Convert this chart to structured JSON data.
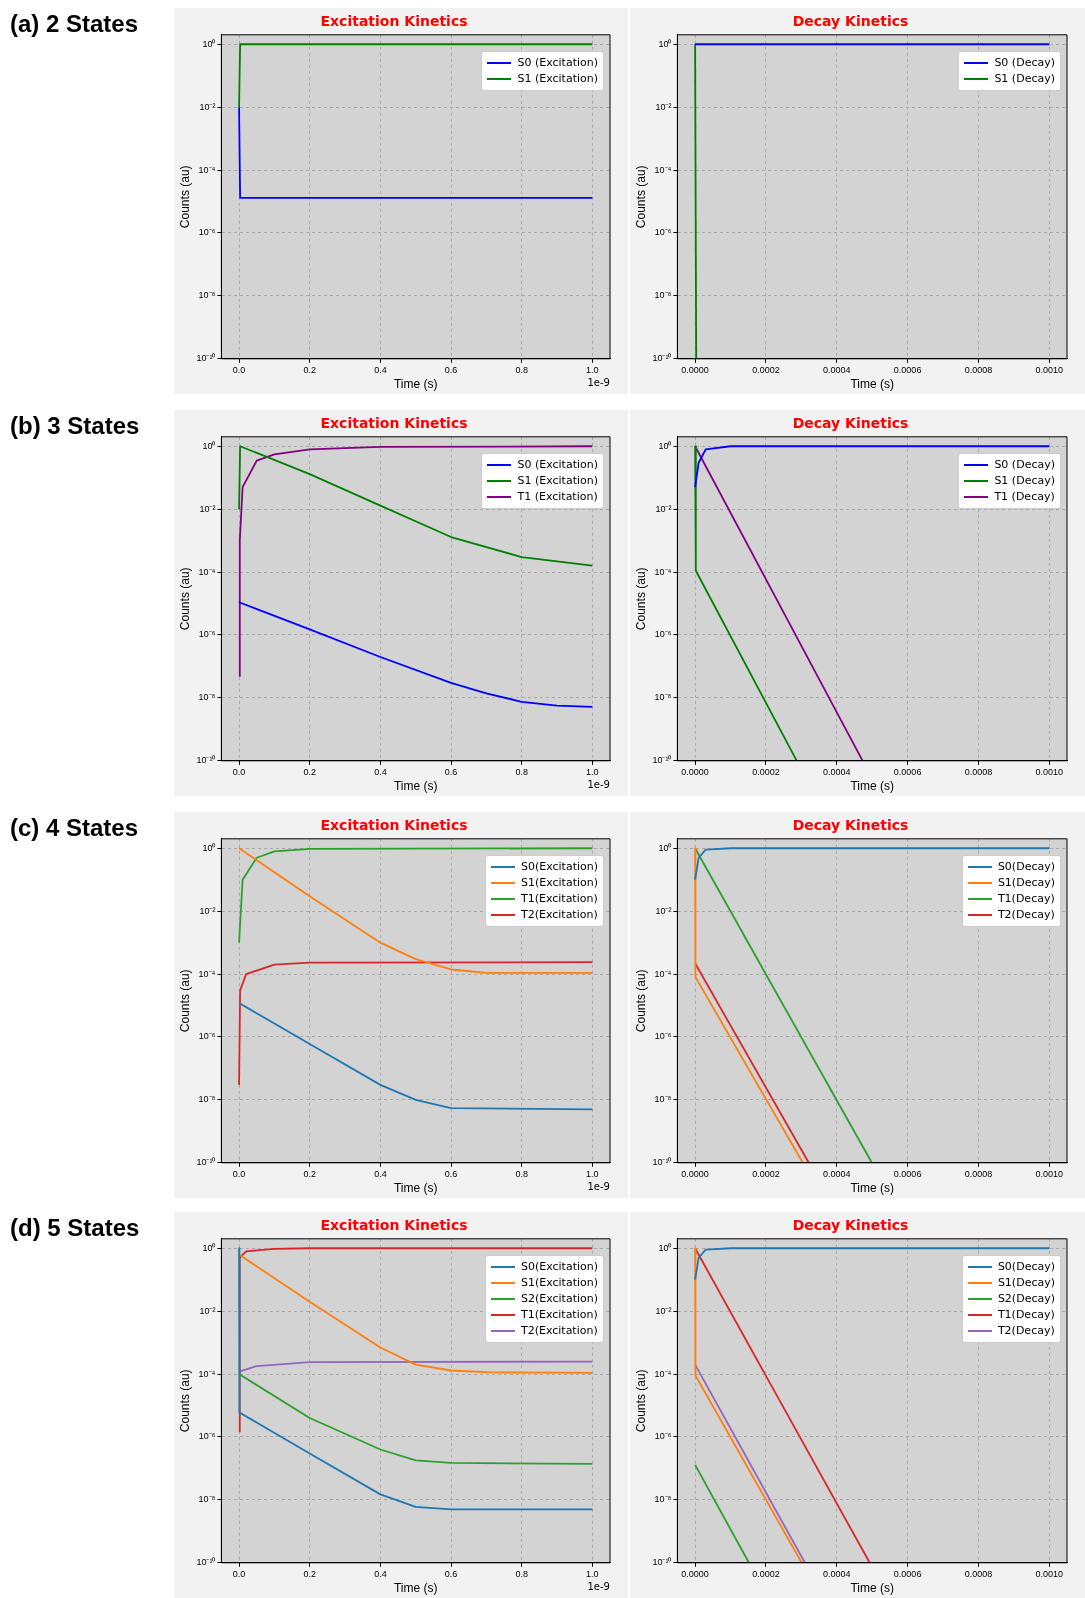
{
  "chart_data": [
    {
      "type": "line",
      "title": "Excitation Kinetics",
      "xlabel": "Time (s)",
      "ylabel": "Counts (au)",
      "log": "y",
      "grid": true,
      "legend": "top right",
      "annotations": [
        "1e-9",
        "(a) 2 States"
      ],
      "xlim": [
        -0.05,
        1.05
      ],
      "xticks": [
        {
          "value": 0,
          "label": "0.0"
        },
        0.2,
        0.4,
        0.6,
        0.8,
        {
          "value": 1,
          "label": "1.0"
        }
      ],
      "ylim": [
        1e-10,
        2
      ],
      "yticks": [
        {
          "value": 1e-10,
          "label": "10⁻¹⁰"
        },
        {
          "value": 1e-08,
          "label": "10⁻⁸"
        },
        {
          "value": 1e-06,
          "label": "10⁻⁶"
        },
        {
          "value": 0.0001,
          "label": "10⁻⁴"
        },
        {
          "value": 0.01,
          "label": "10⁻²"
        },
        {
          "value": 1,
          "label": "10⁰"
        }
      ],
      "series": [
        {
          "name": "S0 (Excitation)",
          "color": "#0000ff",
          "x": [
            0,
            0.003,
            1
          ],
          "values": [
            0.01,
            1.3e-05,
            1.3e-05
          ]
        },
        {
          "name": "S1 (Excitation)",
          "color": "#008000",
          "x": [
            0,
            0.003,
            1
          ],
          "values": [
            0.01,
            1,
            1
          ]
        }
      ]
    },
    {
      "type": "line",
      "title": "Decay Kinetics",
      "xlabel": "Time (s)",
      "ylabel": "Counts (au)",
      "log": "y",
      "grid": true,
      "legend": "top right",
      "xlim": [
        -5e-05,
        0.00105
      ],
      "xticks": [
        {
          "value": 0,
          "label": "0.0000"
        },
        {
          "value": 0.0002,
          "label": "0.0002"
        },
        {
          "value": 0.0004,
          "label": "0.0004"
        },
        {
          "value": 0.0006,
          "label": "0.0006"
        },
        {
          "value": 0.0008,
          "label": "0.0008"
        },
        {
          "value": 0.001,
          "label": "0.0010"
        }
      ],
      "ylim": [
        1e-10,
        2
      ],
      "yticks": [
        {
          "value": 1e-10,
          "label": "10⁻¹⁰"
        },
        {
          "value": 1e-08,
          "label": "10⁻⁸"
        },
        {
          "value": 1e-06,
          "label": "10⁻⁶"
        },
        {
          "value": 0.0001,
          "label": "10⁻⁴"
        },
        {
          "value": 0.01,
          "label": "10⁻²"
        },
        {
          "value": 1,
          "label": "10⁰"
        }
      ],
      "series": [
        {
          "name": "S0 (Decay)",
          "color": "#0000ff",
          "x": [
            0,
            0.001
          ],
          "values": [
            1,
            1
          ]
        },
        {
          "name": "S1 (Decay)",
          "color": "#008000",
          "x": [
            0,
            3e-06
          ],
          "values": [
            1,
            1e-10
          ]
        }
      ]
    },
    {
      "type": "line",
      "title": "Excitation Kinetics",
      "xlabel": "Time (s)",
      "ylabel": "Counts (au)",
      "log": "y",
      "grid": true,
      "legend": "top right",
      "annotations": [
        "1e-9",
        "(b) 3 States"
      ],
      "xlim": [
        -0.05,
        1.05
      ],
      "xticks": [
        {
          "value": 0,
          "label": "0.0"
        },
        0.2,
        0.4,
        0.6,
        0.8,
        {
          "value": 1,
          "label": "1.0"
        }
      ],
      "ylim": [
        1e-10,
        2
      ],
      "yticks": [
        {
          "value": 1e-10,
          "label": "10⁻¹⁰"
        },
        {
          "value": 1e-08,
          "label": "10⁻⁸"
        },
        {
          "value": 1e-06,
          "label": "10⁻⁶"
        },
        {
          "value": 0.0001,
          "label": "10⁻⁴"
        },
        {
          "value": 0.01,
          "label": "10⁻²"
        },
        {
          "value": 1,
          "label": "10⁰"
        }
      ],
      "series": [
        {
          "name": "S0 (Excitation)",
          "color": "#0000ff",
          "x": [
            0,
            0.2,
            0.4,
            0.6,
            0.7,
            0.8,
            0.9,
            1
          ],
          "values": [
            1.1e-05,
            1.5e-06,
            2e-07,
            3e-08,
            1.4e-08,
            7.5e-09,
            5.7e-09,
            5.2e-09
          ]
        },
        {
          "name": "S1 (Excitation)",
          "color": "#008000",
          "x": [
            0,
            0.003,
            0.2,
            0.4,
            0.6,
            0.8,
            1
          ],
          "values": [
            0.01,
            1,
            0.13,
            0.013,
            0.0013,
            0.0003,
            0.00016
          ]
        },
        {
          "name": "T1 (Excitation)",
          "color": "#800080",
          "x": [
            0,
            0.002,
            0.01,
            0.05,
            0.1,
            0.2,
            0.4,
            1
          ],
          "values": [
            5e-08,
            0.001,
            0.05,
            0.35,
            0.55,
            0.8,
            0.95,
            1
          ]
        }
      ]
    },
    {
      "type": "line",
      "title": "Decay Kinetics",
      "xlabel": "Time (s)",
      "ylabel": "Counts (au)",
      "log": "y",
      "grid": true,
      "legend": "top right",
      "xlim": [
        -5e-05,
        0.00105
      ],
      "xticks": [
        {
          "value": 0,
          "label": "0.0000"
        },
        {
          "value": 0.0002,
          "label": "0.0002"
        },
        {
          "value": 0.0004,
          "label": "0.0004"
        },
        {
          "value": 0.0006,
          "label": "0.0006"
        },
        {
          "value": 0.0008,
          "label": "0.0008"
        },
        {
          "value": 0.001,
          "label": "0.0010"
        }
      ],
      "ylim": [
        1e-10,
        2
      ],
      "yticks": [
        {
          "value": 1e-10,
          "label": "10⁻¹⁰"
        },
        {
          "value": 1e-08,
          "label": "10⁻⁸"
        },
        {
          "value": 1e-06,
          "label": "10⁻⁶"
        },
        {
          "value": 0.0001,
          "label": "10⁻⁴"
        },
        {
          "value": 0.01,
          "label": "10⁻²"
        },
        {
          "value": 1,
          "label": "10⁰"
        }
      ],
      "series": [
        {
          "name": "S0 (Decay)",
          "color": "#0000ff",
          "x": [
            0,
            1e-05,
            3e-05,
            0.0001,
            0.001
          ],
          "values": [
            0.05,
            0.3,
            0.8,
            1,
            1
          ]
        },
        {
          "name": "S1 (Decay)",
          "color": "#008000",
          "x": [
            0,
            2e-06,
            0.000287
          ],
          "values": [
            1,
            0.00011,
            1e-10
          ]
        },
        {
          "name": "T1 (Decay)",
          "color": "#800080",
          "x": [
            0,
            0.000473
          ],
          "values": [
            1,
            1e-10
          ]
        }
      ]
    },
    {
      "type": "line",
      "title": "Excitation Kinetics",
      "xlabel": "Time (s)",
      "ylabel": "Counts (au)",
      "log": "y",
      "grid": true,
      "legend": "top right",
      "annotations": [
        "1e-9",
        "(c) 4 States"
      ],
      "xlim": [
        -0.05,
        1.05
      ],
      "xticks": [
        {
          "value": 0,
          "label": "0.0"
        },
        0.2,
        0.4,
        0.6,
        0.8,
        {
          "value": 1,
          "label": "1.0"
        }
      ],
      "ylim": [
        1e-10,
        2
      ],
      "yticks": [
        {
          "value": 1e-10,
          "label": "10⁻¹⁰"
        },
        {
          "value": 1e-08,
          "label": "10⁻⁸"
        },
        {
          "value": 1e-06,
          "label": "10⁻⁶"
        },
        {
          "value": 0.0001,
          "label": "10⁻⁴"
        },
        {
          "value": 0.01,
          "label": "10⁻²"
        },
        {
          "value": 1,
          "label": "10⁰"
        }
      ],
      "series": [
        {
          "name": "S0(Excitation)",
          "color": "#1f77b4",
          "x": [
            0,
            0.2,
            0.4,
            0.5,
            0.6,
            1
          ],
          "values": [
            1.2e-05,
            6e-07,
            3e-08,
            1e-08,
            5.5e-09,
            5e-09
          ]
        },
        {
          "name": "S1(Excitation)",
          "color": "#ff7f0e",
          "x": [
            0,
            0.2,
            0.4,
            0.5,
            0.6,
            0.7,
            1
          ],
          "values": [
            1,
            0.03,
            0.001,
            0.0003,
            0.00014,
            0.00011,
            0.00011
          ]
        },
        {
          "name": "T1(Excitation)",
          "color": "#2ca02c",
          "x": [
            0,
            0.01,
            0.05,
            0.1,
            0.2,
            1
          ],
          "values": [
            0.001,
            0.1,
            0.5,
            0.8,
            0.95,
            1
          ]
        },
        {
          "name": "T2(Excitation)",
          "color": "#d62728",
          "x": [
            0,
            0.003,
            0.02,
            0.1,
            0.2,
            1
          ],
          "values": [
            3e-08,
            3e-05,
            0.0001,
            0.0002,
            0.00023,
            0.00024
          ]
        }
      ]
    },
    {
      "type": "line",
      "title": "Decay Kinetics",
      "xlabel": "Time (s)",
      "ylabel": "Counts (au)",
      "log": "y",
      "grid": true,
      "legend": "top right",
      "xlim": [
        -5e-05,
        0.00105
      ],
      "xticks": [
        {
          "value": 0,
          "label": "0.0000"
        },
        {
          "value": 0.0002,
          "label": "0.0002"
        },
        {
          "value": 0.0004,
          "label": "0.0004"
        },
        {
          "value": 0.0006,
          "label": "0.0006"
        },
        {
          "value": 0.0008,
          "label": "0.0008"
        },
        {
          "value": 0.001,
          "label": "0.0010"
        }
      ],
      "ylim": [
        1e-10,
        2
      ],
      "yticks": [
        {
          "value": 1e-10,
          "label": "10⁻¹⁰"
        },
        {
          "value": 1e-08,
          "label": "10⁻⁸"
        },
        {
          "value": 1e-06,
          "label": "10⁻⁶"
        },
        {
          "value": 0.0001,
          "label": "10⁻⁴"
        },
        {
          "value": 0.01,
          "label": "10⁻²"
        },
        {
          "value": 1,
          "label": "10⁰"
        }
      ],
      "series": [
        {
          "name": "S0(Decay)",
          "color": "#1f77b4",
          "x": [
            0,
            1e-05,
            3e-05,
            0.0001,
            0.001
          ],
          "values": [
            0.1,
            0.5,
            0.9,
            1,
            1
          ]
        },
        {
          "name": "S1(Decay)",
          "color": "#ff7f0e",
          "x": [
            0,
            1e-06,
            0.000304
          ],
          "values": [
            1,
            8e-05,
            1e-10
          ]
        },
        {
          "name": "T1(Decay)",
          "color": "#2ca02c",
          "x": [
            0,
            0.000499
          ],
          "values": [
            1,
            1e-10
          ]
        },
        {
          "name": "T2(Decay)",
          "color": "#d62728",
          "x": [
            0,
            0.000321
          ],
          "values": [
            0.00022,
            1e-10
          ]
        }
      ]
    },
    {
      "type": "line",
      "title": "Excitation Kinetics",
      "xlabel": "Time (s)",
      "ylabel": "Counts (au)",
      "log": "y",
      "grid": true,
      "legend": "top right",
      "annotations": [
        "1e-9",
        "(d) 5 States"
      ],
      "xlim": [
        -0.05,
        1.05
      ],
      "xticks": [
        {
          "value": 0,
          "label": "0.0"
        },
        0.2,
        0.4,
        0.6,
        0.8,
        {
          "value": 1,
          "label": "1.0"
        }
      ],
      "ylim": [
        1e-10,
        2
      ],
      "yticks": [
        {
          "value": 1e-10,
          "label": "10⁻¹⁰"
        },
        {
          "value": 1e-08,
          "label": "10⁻⁸"
        },
        {
          "value": 1e-06,
          "label": "10⁻⁶"
        },
        {
          "value": 0.0001,
          "label": "10⁻⁴"
        },
        {
          "value": 0.01,
          "label": "10⁻²"
        },
        {
          "value": 1,
          "label": "10⁰"
        }
      ],
      "series": [
        {
          "name": "S0(Excitation)",
          "color": "#1f77b4",
          "x": [
            0,
            0.001,
            0.2,
            0.4,
            0.5,
            0.6,
            1
          ],
          "values": [
            1,
            6e-06,
            3e-07,
            1.5e-08,
            6e-09,
            5e-09,
            5e-09
          ]
        },
        {
          "name": "S1(Excitation)",
          "color": "#ff7f0e",
          "x": [
            0.003,
            0.2,
            0.4,
            0.5,
            0.6,
            0.7,
            1
          ],
          "values": [
            0.6,
            0.02,
            0.0007,
            0.0002,
            0.00013,
            0.000115,
            0.00011
          ]
        },
        {
          "name": "S2(Excitation)",
          "color": "#2ca02c",
          "x": [
            0,
            0.2,
            0.4,
            0.5,
            0.6,
            1
          ],
          "values": [
            0.0001,
            4e-06,
            4e-07,
            1.8e-07,
            1.5e-07,
            1.4e-07
          ]
        },
        {
          "name": "T1(Excitation)",
          "color": "#d62728",
          "x": [
            0,
            0.002,
            0.02,
            0.1,
            0.2,
            1
          ],
          "values": [
            1.5e-06,
            0.5,
            0.8,
            0.95,
            1,
            1
          ]
        },
        {
          "name": "T2(Excitation)",
          "color": "#9467bd",
          "x": [
            0,
            0.05,
            0.2,
            1
          ],
          "values": [
            0.00012,
            0.00018,
            0.00024,
            0.00025
          ]
        }
      ]
    },
    {
      "type": "line",
      "title": "Decay Kinetics",
      "xlabel": "Time (s)",
      "ylabel": "Counts (au)",
      "log": "y",
      "grid": true,
      "legend": "top right",
      "xlim": [
        -5e-05,
        0.00105
      ],
      "xticks": [
        {
          "value": 0,
          "label": "0.0000"
        },
        {
          "value": 0.0002,
          "label": "0.0002"
        },
        {
          "value": 0.0004,
          "label": "0.0004"
        },
        {
          "value": 0.0006,
          "label": "0.0006"
        },
        {
          "value": 0.0008,
          "label": "0.0008"
        },
        {
          "value": 0.001,
          "label": "0.0010"
        }
      ],
      "ylim": [
        1e-10,
        2
      ],
      "yticks": [
        {
          "value": 1e-10,
          "label": "10⁻¹⁰"
        },
        {
          "value": 1e-08,
          "label": "10⁻⁸"
        },
        {
          "value": 1e-06,
          "label": "10⁻⁶"
        },
        {
          "value": 0.0001,
          "label": "10⁻⁴"
        },
        {
          "value": 0.01,
          "label": "10⁻²"
        },
        {
          "value": 1,
          "label": "10⁰"
        }
      ],
      "series": [
        {
          "name": "S0(Decay)",
          "color": "#1f77b4",
          "x": [
            0,
            1e-05,
            3e-05,
            0.0001,
            0.001
          ],
          "values": [
            0.1,
            0.5,
            0.9,
            1,
            1
          ]
        },
        {
          "name": "S1(Decay)",
          "color": "#ff7f0e",
          "x": [
            0,
            1e-06,
            0.000301
          ],
          "values": [
            1,
            9e-05,
            1e-10
          ]
        },
        {
          "name": "S2(Decay)",
          "color": "#2ca02c",
          "x": [
            0,
            0.000152
          ],
          "values": [
            1.3e-07,
            1e-10
          ]
        },
        {
          "name": "T1(Decay)",
          "color": "#d62728",
          "x": [
            0,
            0.000493
          ],
          "values": [
            1,
            1e-10
          ]
        },
        {
          "name": "T2(Decay)",
          "color": "#9467bd",
          "x": [
            0,
            0.00031
          ],
          "values": [
            0.0002,
            1e-10
          ]
        }
      ]
    }
  ]
}
